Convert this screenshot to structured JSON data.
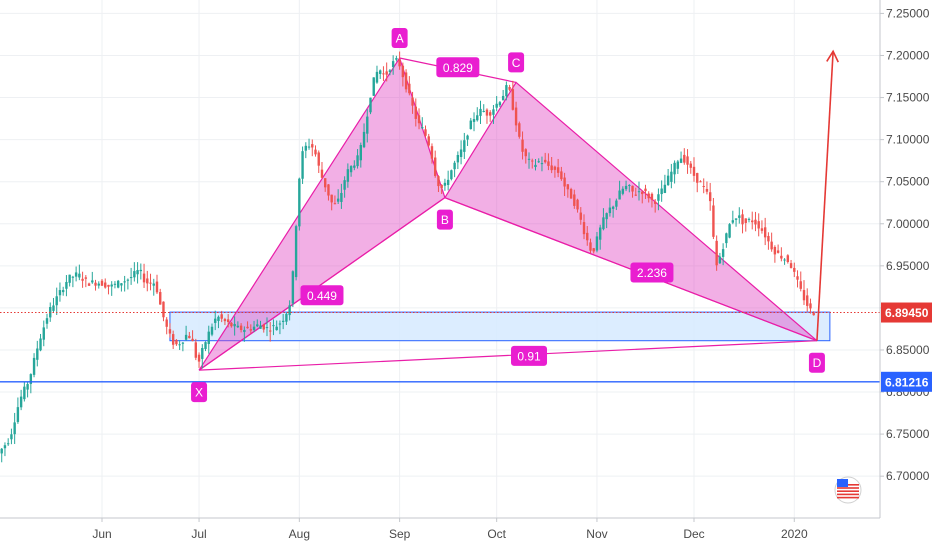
{
  "chart_data": {
    "type": "candlestick",
    "title": "",
    "xlabel": "",
    "ylabel": "",
    "ylim": [
      6.68,
      7.26
    ],
    "grid": true,
    "x_ticks": [
      {
        "label": "Jun",
        "day": 0
      },
      {
        "label": "Jul",
        "day": 30
      },
      {
        "label": "Aug",
        "day": 61
      },
      {
        "label": "Sep",
        "day": 92
      },
      {
        "label": "Oct",
        "day": 122
      },
      {
        "label": "Nov",
        "day": 153
      },
      {
        "label": "Dec",
        "day": 183
      },
      {
        "label": "2020",
        "day": 214
      }
    ],
    "x_range": [
      -32,
      240
    ],
    "y_ticks": [
      "6.70000",
      "6.75000",
      "6.80000",
      "6.85000",
      "6.90000",
      "6.95000",
      "7.00000",
      "7.05000",
      "7.10000",
      "7.15000",
      "7.20000",
      "7.25000"
    ],
    "price_series": [
      [
        -32,
        6.725
      ],
      [
        -28,
        6.745
      ],
      [
        -25,
        6.79
      ],
      [
        -22,
        6.815
      ],
      [
        -19,
        6.86
      ],
      [
        -16,
        6.895
      ],
      [
        -13,
        6.915
      ],
      [
        -10,
        6.935
      ],
      [
        -7,
        6.94
      ],
      [
        -4,
        6.93
      ],
      [
        0,
        6.93
      ],
      [
        3,
        6.925
      ],
      [
        6,
        6.93
      ],
      [
        9,
        6.935
      ],
      [
        12,
        6.945
      ],
      [
        14,
        6.93
      ],
      [
        17,
        6.93
      ],
      [
        19,
        6.895
      ],
      [
        21,
        6.87
      ],
      [
        23,
        6.855
      ],
      [
        25,
        6.86
      ],
      [
        27,
        6.87
      ],
      [
        29,
        6.855
      ],
      [
        30,
        6.83
      ],
      [
        32,
        6.855
      ],
      [
        34,
        6.875
      ],
      [
        36,
        6.89
      ],
      [
        38,
        6.885
      ],
      [
        40,
        6.88
      ],
      [
        43,
        6.875
      ],
      [
        46,
        6.875
      ],
      [
        49,
        6.88
      ],
      [
        52,
        6.875
      ],
      [
        55,
        6.88
      ],
      [
        57,
        6.89
      ],
      [
        59,
        6.91
      ],
      [
        60,
        6.97
      ],
      [
        61,
        7.03
      ],
      [
        62,
        7.08
      ],
      [
        64,
        7.095
      ],
      [
        66,
        7.09
      ],
      [
        68,
        7.06
      ],
      [
        70,
        7.04
      ],
      [
        72,
        7.02
      ],
      [
        74,
        7.03
      ],
      [
        76,
        7.06
      ],
      [
        78,
        7.07
      ],
      [
        80,
        7.08
      ],
      [
        82,
        7.12
      ],
      [
        84,
        7.165
      ],
      [
        86,
        7.185
      ],
      [
        88,
        7.175
      ],
      [
        90,
        7.19
      ],
      [
        92,
        7.195
      ],
      [
        94,
        7.17
      ],
      [
        96,
        7.145
      ],
      [
        98,
        7.12
      ],
      [
        100,
        7.11
      ],
      [
        102,
        7.09
      ],
      [
        104,
        7.05
      ],
      [
        106,
        7.04
      ],
      [
        108,
        7.06
      ],
      [
        110,
        7.075
      ],
      [
        112,
        7.09
      ],
      [
        114,
        7.115
      ],
      [
        116,
        7.13
      ],
      [
        118,
        7.135
      ],
      [
        120,
        7.13
      ],
      [
        122,
        7.14
      ],
      [
        124,
        7.15
      ],
      [
        126,
        7.165
      ],
      [
        128,
        7.13
      ],
      [
        130,
        7.09
      ],
      [
        132,
        7.075
      ],
      [
        134,
        7.07
      ],
      [
        136,
        7.075
      ],
      [
        138,
        7.07
      ],
      [
        140,
        7.065
      ],
      [
        142,
        7.06
      ],
      [
        144,
        7.04
      ],
      [
        146,
        7.03
      ],
      [
        148,
        7.01
      ],
      [
        150,
        6.985
      ],
      [
        152,
        6.965
      ],
      [
        153,
        6.975
      ],
      [
        155,
        7.0
      ],
      [
        157,
        7.015
      ],
      [
        159,
        7.025
      ],
      [
        161,
        7.04
      ],
      [
        163,
        7.045
      ],
      [
        165,
        7.035
      ],
      [
        167,
        7.04
      ],
      [
        169,
        7.035
      ],
      [
        171,
        7.025
      ],
      [
        173,
        7.035
      ],
      [
        175,
        7.05
      ],
      [
        177,
        7.065
      ],
      [
        179,
        7.08
      ],
      [
        181,
        7.075
      ],
      [
        183,
        7.06
      ],
      [
        185,
        7.05
      ],
      [
        187,
        7.04
      ],
      [
        189,
        7.02
      ],
      [
        190,
        6.945
      ],
      [
        191,
        6.955
      ],
      [
        193,
        6.98
      ],
      [
        195,
        7.005
      ],
      [
        197,
        7.01
      ],
      [
        199,
        7.0
      ],
      [
        201,
        7.005
      ],
      [
        203,
        7.0
      ],
      [
        205,
        6.99
      ],
      [
        207,
        6.975
      ],
      [
        209,
        6.965
      ],
      [
        211,
        6.96
      ],
      [
        213,
        6.955
      ],
      [
        215,
        6.935
      ],
      [
        217,
        6.915
      ],
      [
        219,
        6.9
      ],
      [
        220,
        6.8945
      ]
    ],
    "harmonic_points": [
      {
        "label": "X",
        "day": 30,
        "value": 6.826
      },
      {
        "label": "A",
        "day": 92,
        "value": 7.197
      },
      {
        "label": "B",
        "day": 106,
        "value": 7.031
      },
      {
        "label": "C",
        "day": 128,
        "value": 7.168
      },
      {
        "label": "D",
        "day": 221,
        "value": 6.861
      }
    ],
    "ratios": [
      {
        "label": "0.449",
        "day": 68,
        "value": 6.915
      },
      {
        "label": "0.829",
        "day": 110,
        "value": 7.186
      },
      {
        "label": "2.236",
        "day": 170,
        "value": 6.942
      },
      {
        "label": "0.91",
        "day": 132,
        "value": 6.843
      }
    ],
    "zone": {
      "day_start": 21,
      "day_end": 225,
      "low": 6.861,
      "high": 6.895
    },
    "projection": {
      "start_day": 221,
      "start_value": 6.861,
      "end_day": 226,
      "end_value": 7.205
    },
    "horizontal_lines": [
      {
        "value": 6.81216,
        "style": "solid",
        "color": "#2962ff"
      },
      {
        "value": 6.8945,
        "style": "dotted",
        "color": "#e53935"
      }
    ],
    "price_tags": [
      {
        "value": 6.8945,
        "label": "6.89450",
        "color": "#e53935"
      },
      {
        "value": 6.81216,
        "label": "6.81216",
        "color": "#2962ff"
      }
    ],
    "colors": {
      "up": "#26a69a",
      "down": "#ef5350",
      "pattern_fill": "#e040c0",
      "pattern_stroke": "#e91ea8",
      "label_bg": "#e91ed0",
      "zone_fill": "#d6eaff",
      "zone_stroke": "#2962ff",
      "projection": "#e53935",
      "grid": "#eef0f3",
      "axis_line": "#c4c7cc"
    },
    "badge_icon": "us-flag-icon"
  }
}
